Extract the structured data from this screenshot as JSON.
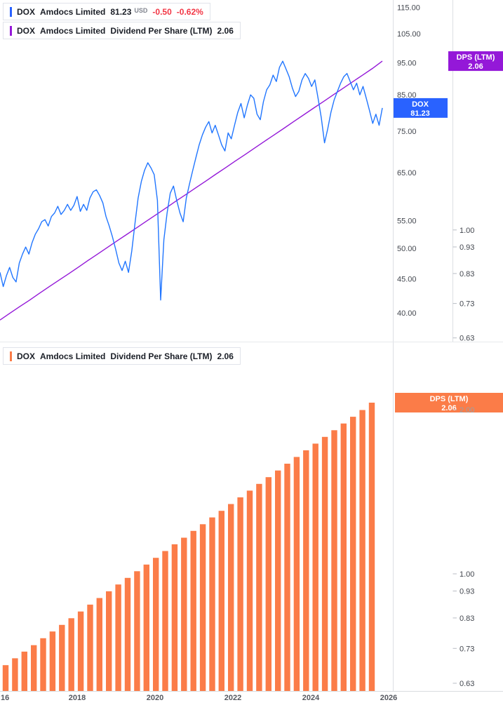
{
  "colors": {
    "price_line": "#2176ff",
    "price_label_bg": "#2962ff",
    "dps_line": "#9418d8",
    "dps_label_bg": "#9418d8",
    "bar_fill": "#fb7c48",
    "bar_label_bg": "#fb7c48",
    "change_negative": "#f23645"
  },
  "price_panel": {
    "legend_main": {
      "symbol": "DOX",
      "name": "Amdocs Limited",
      "price": "81.23",
      "currency": "USD",
      "change": "-0.50",
      "change_pct": "-0.62%"
    },
    "legend_overlay": {
      "symbol": "DOX",
      "name": "Amdocs Limited",
      "indicator": "Dividend Per Share (LTM)",
      "value": "2.06"
    },
    "price_axis_label": {
      "title": "DOX",
      "value": "81.23"
    },
    "overlay_axis_label": {
      "title": "DPS (LTM)",
      "value": "2.06"
    }
  },
  "dividend_panel": {
    "legend": {
      "symbol": "DOX",
      "name": "Amdocs Limited",
      "indicator": "Dividend Per Share (LTM)",
      "value": "2.06"
    },
    "axis_label": {
      "title": "DPS (LTM)",
      "value": "2.06"
    }
  },
  "time_axis": {
    "labels": [
      "16",
      "2018",
      "2020",
      "2022",
      "2024",
      "2026"
    ]
  },
  "chart_data": [
    {
      "type": "line",
      "name": "DOX Amdocs Limited share price",
      "color_key": "price_line",
      "x_start": 2016.0,
      "x_end": 2025.92,
      "x_step": "monthly",
      "scale": "log",
      "ylim": [
        36.2,
        118.0
      ],
      "ticks": [
        115,
        105,
        95,
        85,
        75,
        65,
        55,
        50,
        45,
        40
      ],
      "tick_labels": [
        "115.00",
        "105.00",
        "95.00",
        "85.00",
        "75.00",
        "65.00",
        "55.00",
        "50.00",
        "45.00",
        "40.00"
      ],
      "last_value": 81.23,
      "values": [
        46.0,
        43.8,
        45.5,
        46.8,
        45.2,
        44.5,
        47.5,
        49.0,
        50.2,
        49.0,
        51.0,
        52.5,
        53.5,
        54.8,
        55.2,
        54.0,
        55.8,
        56.5,
        57.8,
        56.2,
        57.0,
        58.2,
        57.0,
        58.0,
        59.8,
        56.8,
        58.2,
        57.0,
        59.5,
        60.8,
        61.2,
        60.0,
        58.5,
        55.8,
        54.0,
        52.0,
        49.8,
        47.5,
        46.3,
        47.8,
        46.0,
        49.5,
        54.5,
        59.5,
        63.0,
        65.5,
        67.2,
        66.0,
        64.5,
        59.0,
        41.8,
        51.5,
        56.5,
        60.5,
        62.0,
        59.0,
        56.5,
        54.8,
        59.5,
        62.5,
        65.5,
        68.5,
        71.5,
        74.0,
        76.0,
        77.5,
        74.5,
        76.5,
        74.0,
        71.5,
        70.0,
        74.5,
        73.0,
        76.5,
        80.0,
        82.5,
        78.5,
        82.0,
        85.0,
        84.0,
        79.5,
        78.0,
        83.0,
        86.5,
        88.0,
        91.0,
        89.0,
        93.5,
        95.5,
        93.0,
        90.5,
        87.0,
        84.5,
        86.0,
        89.5,
        91.5,
        90.0,
        87.5,
        89.5,
        84.0,
        78.5,
        72.0,
        75.5,
        80.0,
        83.5,
        86.0,
        88.5,
        90.5,
        91.5,
        89.0,
        86.5,
        88.5,
        85.0,
        87.5,
        84.0,
        80.5,
        77.0,
        79.5,
        76.5,
        81.23
      ]
    },
    {
      "type": "line",
      "name": "Dividend Per Share (LTM) overlay",
      "color_key": "dps_line",
      "x_start": 2016.0,
      "x_end": 2025.92,
      "x_step": "quarterly",
      "scale": "log",
      "ylim": [
        0.62,
        2.676
      ],
      "ticks": [
        1.0,
        0.93,
        0.83,
        0.73,
        0.63
      ],
      "tick_labels": [
        "1.00",
        "0.93",
        "0.83",
        "0.73",
        "0.63"
      ],
      "last_value": 2.06,
      "values": [
        0.68,
        0.7,
        0.72,
        0.74,
        0.762,
        0.784,
        0.806,
        0.829,
        0.853,
        0.878,
        0.903,
        0.929,
        0.956,
        0.983,
        1.011,
        1.04,
        1.07,
        1.101,
        1.133,
        1.165,
        1.199,
        1.233,
        1.269,
        1.305,
        1.343,
        1.381,
        1.421,
        1.462,
        1.504,
        1.547,
        1.592,
        1.638,
        1.685,
        1.733,
        1.783,
        1.834,
        1.887,
        1.941,
        1.997,
        2.06
      ]
    },
    {
      "type": "bar",
      "name": "Dividend Per Share (LTM)",
      "color_key": "bar_fill",
      "x_start": 2016.0,
      "x_end": 2025.75,
      "x_step": "quarterly",
      "scale": "log",
      "ylim": [
        0.608,
        2.658
      ],
      "ticks": [
        2.0,
        1.0,
        0.93,
        0.83,
        0.73,
        0.63
      ],
      "tick_labels": [
        "2.00",
        "1.00",
        "0.93",
        "0.83",
        "0.73",
        "0.63"
      ],
      "last_value": 2.06,
      "values": [
        0.68,
        0.7,
        0.72,
        0.74,
        0.762,
        0.784,
        0.806,
        0.829,
        0.853,
        0.878,
        0.903,
        0.929,
        0.956,
        0.983,
        1.011,
        1.04,
        1.07,
        1.101,
        1.133,
        1.165,
        1.199,
        1.233,
        1.269,
        1.305,
        1.343,
        1.381,
        1.421,
        1.462,
        1.504,
        1.547,
        1.592,
        1.638,
        1.685,
        1.733,
        1.783,
        1.834,
        1.887,
        1.941,
        1.997,
        2.06
      ]
    }
  ]
}
